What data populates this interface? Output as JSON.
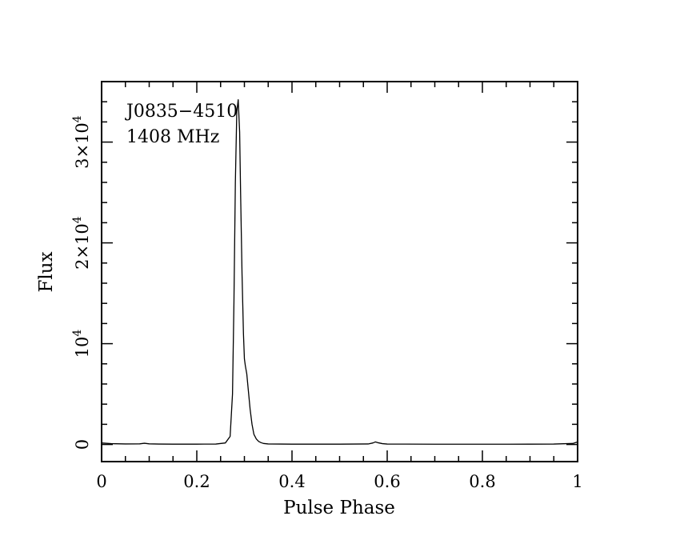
{
  "chart_data": {
    "type": "line",
    "title": "",
    "annotations": [
      "J0835−4510",
      "1408 MHz"
    ],
    "xlabel": "Pulse Phase",
    "ylabel": "Flux",
    "xlim": [
      0,
      1
    ],
    "ylim": [
      -1700,
      36000
    ],
    "x_ticks": [
      {
        "value": 0,
        "label": "0"
      },
      {
        "value": 0.2,
        "label": "0.2"
      },
      {
        "value": 0.4,
        "label": "0.4"
      },
      {
        "value": 0.6,
        "label": "0.6"
      },
      {
        "value": 0.8,
        "label": "0.8"
      },
      {
        "value": 1,
        "label": "1"
      }
    ],
    "y_ticks": [
      {
        "value": 0,
        "label": "0"
      },
      {
        "value": 10000,
        "label": "10",
        "exp": "4",
        "prefix": ""
      },
      {
        "value": 20000,
        "label": "2×10",
        "exp": "4"
      },
      {
        "value": 30000,
        "label": "3×10",
        "exp": "4"
      }
    ],
    "grid": false,
    "series": [
      {
        "x": [
          0,
          0.02,
          0.05,
          0.08,
          0.09,
          0.1,
          0.12,
          0.15,
          0.2,
          0.24,
          0.26,
          0.27,
          0.275,
          0.278,
          0.281,
          0.284,
          0.287,
          0.29,
          0.292,
          0.295,
          0.298,
          0.3,
          0.302,
          0.305,
          0.308,
          0.312,
          0.316,
          0.32,
          0.325,
          0.33,
          0.335,
          0.34,
          0.35,
          0.4,
          0.5,
          0.56,
          0.57,
          0.575,
          0.58,
          0.59,
          0.6,
          0.7,
          0.8,
          0.9,
          0.95,
          0.99,
          1.0
        ],
        "y": [
          150,
          80,
          50,
          60,
          120,
          60,
          40,
          30,
          30,
          40,
          150,
          800,
          5000,
          14000,
          26000,
          33000,
          34200,
          31000,
          25000,
          17000,
          11000,
          8500,
          7800,
          7000,
          5500,
          3500,
          2000,
          1000,
          550,
          300,
          180,
          100,
          50,
          30,
          30,
          50,
          150,
          250,
          180,
          80,
          40,
          25,
          25,
          30,
          40,
          100,
          250
        ]
      }
    ]
  }
}
